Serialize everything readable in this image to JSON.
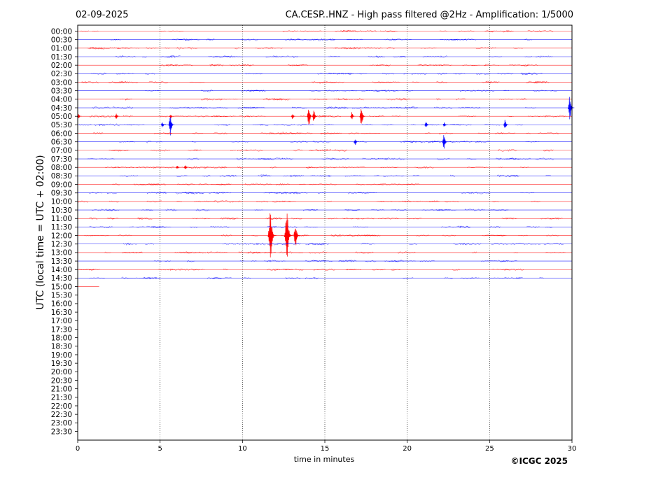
{
  "header": {
    "date": "02-09-2025",
    "title": "CA.CESP..HNZ - High pass filtered @2Hz - Amplification: 1/5000"
  },
  "footer": {
    "credit": "©ICGC 2025"
  },
  "chart_data": {
    "type": "line",
    "title": "CA.CESP..HNZ - High pass filtered @2Hz - Amplification: 1/5000",
    "xlabel": "time in minutes",
    "ylabel": "UTC (local time = UTC + 02:00)",
    "xlim": [
      0,
      30
    ],
    "x_ticks": [
      "0",
      "5",
      "10",
      "15",
      "20",
      "25",
      "30"
    ],
    "x_tick_values": [
      0,
      5,
      10,
      15,
      20,
      25,
      30
    ],
    "y_tick_labels": [
      "00:00",
      "00:30",
      "01:00",
      "01:30",
      "02:00",
      "02:30",
      "03:00",
      "03:30",
      "04:00",
      "04:30",
      "05:00",
      "05:30",
      "06:00",
      "06:30",
      "07:00",
      "07:30",
      "08:00",
      "08:30",
      "09:00",
      "09:30",
      "10:00",
      "10:30",
      "11:00",
      "11:30",
      "12:00",
      "12:30",
      "13:00",
      "13:30",
      "14:00",
      "14:30",
      "15:00",
      "15:30",
      "16:00",
      "16:30",
      "17:00",
      "17:30",
      "18:00",
      "18:30",
      "19:00",
      "19:30",
      "20:00",
      "20:30",
      "21:00",
      "21:30",
      "22:00",
      "22:30",
      "23:00",
      "23:30"
    ],
    "vertical_grid": "dotted at each x tick",
    "trace_colors": {
      "even_rows": "#ff0000",
      "odd_rows": "#0000ff"
    },
    "recorded_until": {
      "row": "15:00",
      "minutes": 1.3
    },
    "events": [
      {
        "row": "04:30",
        "minute": 29.95,
        "amplitude": 1.5
      },
      {
        "row": "05:00",
        "minute": 0.1,
        "amplitude": 0.3
      },
      {
        "row": "05:00",
        "minute": 2.4,
        "amplitude": 0.35
      },
      {
        "row": "05:00",
        "minute": 5.7,
        "amplitude": 0.3
      },
      {
        "row": "05:00",
        "minute": 13.1,
        "amplitude": 0.4
      },
      {
        "row": "05:00",
        "minute": 14.1,
        "amplitude": 1.3
      },
      {
        "row": "05:00",
        "minute": 14.4,
        "amplitude": 0.8
      },
      {
        "row": "05:00",
        "minute": 16.7,
        "amplitude": 0.5
      },
      {
        "row": "05:00",
        "minute": 17.3,
        "amplitude": 1.4
      },
      {
        "row": "05:30",
        "minute": 5.2,
        "amplitude": 0.35
      },
      {
        "row": "05:30",
        "minute": 5.7,
        "amplitude": 1.3
      },
      {
        "row": "05:30",
        "minute": 21.2,
        "amplitude": 0.4
      },
      {
        "row": "05:30",
        "minute": 22.3,
        "amplitude": 0.3
      },
      {
        "row": "05:30",
        "minute": 26.0,
        "amplitude": 0.7
      },
      {
        "row": "06:30",
        "minute": 16.9,
        "amplitude": 0.45
      },
      {
        "row": "06:30",
        "minute": 22.3,
        "amplitude": 1.0
      },
      {
        "row": "08:00",
        "minute": 6.6,
        "amplitude": 0.35
      },
      {
        "row": "08:00",
        "minute": 6.1,
        "amplitude": 0.25
      },
      {
        "row": "12:00",
        "minute": 11.8,
        "amplitude": 3.0
      },
      {
        "row": "12:00",
        "minute": 12.8,
        "amplitude": 3.1
      },
      {
        "row": "12:00",
        "minute": 13.3,
        "amplitude": 1.7
      }
    ]
  }
}
